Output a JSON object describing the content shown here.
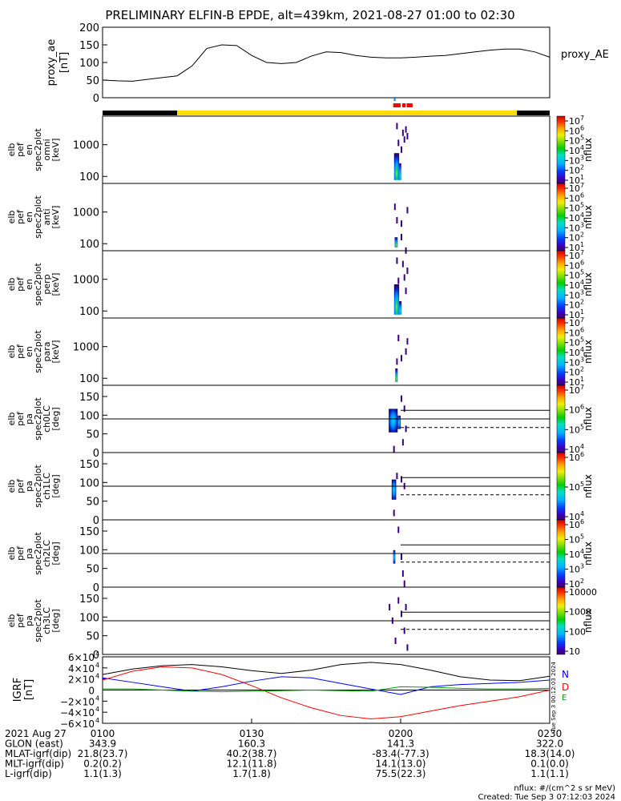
{
  "title": "PRELIMINARY ELFIN-B EPDE, alt=439km, 2021-08-27 01:00 to 02:30",
  "colors": {
    "black": "#000000",
    "yellow": "#ffdd00",
    "red": "#ff0000",
    "blue": "#1e7fff",
    "igrf_n": "#0000ff",
    "igrf_d": "#ff0000",
    "igrf_e": "#00a000",
    "igrf_total": "#000000"
  },
  "header_bar": {
    "segments": [
      {
        "start": 0,
        "end": 0.25,
        "color": "black"
      },
      {
        "start": 0.25,
        "end": 1.39,
        "color": "yellow"
      },
      {
        "start": 1.39,
        "end": 1.5,
        "color": "black"
      }
    ],
    "red_marks": [
      [
        0.975,
        1.0
      ],
      [
        1.005,
        1.017
      ],
      [
        1.02,
        1.04
      ]
    ],
    "blue_marks": [
      [
        0.977,
        0.983
      ]
    ]
  },
  "chart_data": [
    {
      "type": "line",
      "panel": "proxy_ae",
      "ylabel": [
        "proxy_ae",
        "[nT]"
      ],
      "ylim": [
        0,
        200
      ],
      "yticks": [
        "200",
        "150",
        "100",
        "50",
        "0"
      ],
      "yticks_values": [
        200,
        150,
        100,
        50,
        0
      ],
      "legend": "proxy_AE",
      "x_hours": [
        0,
        0.05,
        0.1,
        0.15,
        0.2,
        0.25,
        0.3,
        0.35,
        0.4,
        0.45,
        0.5,
        0.55,
        0.6,
        0.65,
        0.7,
        0.75,
        0.8,
        0.85,
        0.9,
        0.95,
        1.0,
        1.05,
        1.1,
        1.15,
        1.2,
        1.25,
        1.3,
        1.35,
        1.4,
        1.45,
        1.5
      ],
      "values": [
        50,
        48,
        47,
        52,
        57,
        62,
        90,
        140,
        150,
        148,
        120,
        100,
        97,
        100,
        118,
        130,
        128,
        120,
        115,
        113,
        113,
        115,
        118,
        120,
        125,
        130,
        135,
        138,
        138,
        130,
        115
      ]
    },
    {
      "type": "heatmap",
      "panel": "omni",
      "ylabel": [
        "elb",
        "pef",
        "en",
        "spec2plot",
        "omni",
        "[keV]"
      ],
      "scale": "log",
      "yticks": [
        "1000",
        "100"
      ],
      "yticks_values": [
        1000,
        100
      ],
      "colorbar": {
        "label": "nflux",
        "ticks": [
          "10",
          "10",
          "10",
          "10",
          "10",
          "10",
          "10"
        ],
        "exponents": [
          "7",
          "6",
          "5",
          "4",
          "3",
          "2",
          "1"
        ]
      }
    },
    {
      "type": "heatmap",
      "panel": "anti",
      "ylabel": [
        "elb",
        "pef",
        "en",
        "spec2plot",
        "anti",
        "[keV]"
      ],
      "scale": "log",
      "yticks": [
        "1000",
        "100"
      ],
      "yticks_values": [
        1000,
        100
      ],
      "colorbar": {
        "label": "nflux",
        "ticks": [
          "10",
          "10",
          "10",
          "10",
          "10",
          "10",
          "10"
        ],
        "exponents": [
          "7",
          "6",
          "5",
          "4",
          "3",
          "2",
          "1"
        ]
      }
    },
    {
      "type": "heatmap",
      "panel": "perp",
      "ylabel": [
        "elb",
        "pef",
        "en",
        "spec2plot",
        "perp",
        "[keV]"
      ],
      "scale": "log",
      "yticks": [
        "1000",
        "100"
      ],
      "yticks_values": [
        1000,
        100
      ],
      "colorbar": {
        "label": "nflux",
        "ticks": [
          "10",
          "10",
          "10",
          "10",
          "10",
          "10",
          "10"
        ],
        "exponents": [
          "7",
          "6",
          "5",
          "4",
          "3",
          "2",
          "1"
        ]
      }
    },
    {
      "type": "heatmap",
      "panel": "para",
      "ylabel": [
        "elb",
        "pef",
        "en",
        "spec2plot",
        "para",
        "[keV]"
      ],
      "scale": "log",
      "yticks": [
        "1000",
        "100"
      ],
      "yticks_values": [
        1000,
        100
      ],
      "colorbar": {
        "label": "nflux",
        "ticks": [
          "10",
          "10",
          "10",
          "10",
          "10",
          "10",
          "10"
        ],
        "exponents": [
          "7",
          "6",
          "5",
          "4",
          "3",
          "2",
          "1"
        ]
      }
    },
    {
      "type": "heatmap",
      "panel": "ch0LC",
      "ylabel": [
        "elb",
        "pef",
        "pa",
        "spec2plot",
        "ch0LC",
        "[deg]"
      ],
      "ylim": [
        0,
        180
      ],
      "yticks": [
        "150",
        "100",
        "50",
        "0"
      ],
      "yticks_values": [
        150,
        100,
        50,
        0
      ],
      "colorbar": {
        "label": "nflux",
        "ticks": [
          "10",
          "10",
          "10",
          "10"
        ],
        "exponents": [
          "7",
          "6",
          "5",
          "4"
        ]
      }
    },
    {
      "type": "heatmap",
      "panel": "ch1LC",
      "ylabel": [
        "elb",
        "pef",
        "pa",
        "spec2plot",
        "ch1LC",
        "[deg]"
      ],
      "ylim": [
        0,
        180
      ],
      "yticks": [
        "150",
        "100",
        "50",
        "0"
      ],
      "yticks_values": [
        150,
        100,
        50,
        0
      ],
      "colorbar": {
        "label": "nflux",
        "ticks": [
          "10",
          "10",
          "10"
        ],
        "exponents": [
          "6",
          "5",
          "4"
        ]
      }
    },
    {
      "type": "heatmap",
      "panel": "ch2LC",
      "ylabel": [
        "elb",
        "pef",
        "pa",
        "spec2plot",
        "ch2LC",
        "[deg]"
      ],
      "ylim": [
        0,
        180
      ],
      "yticks": [
        "150",
        "100",
        "50",
        "0"
      ],
      "yticks_values": [
        150,
        100,
        50,
        0
      ],
      "colorbar": {
        "label": "nflux",
        "ticks": [
          "10",
          "10",
          "10",
          "10",
          "10"
        ],
        "exponents": [
          "6",
          "5",
          "4",
          "3",
          "2"
        ]
      }
    },
    {
      "type": "heatmap",
      "panel": "ch3LC",
      "ylabel": [
        "elb",
        "pef",
        "pa",
        "spec2plot",
        "ch3LC",
        "[deg]"
      ],
      "ylim": [
        0,
        180
      ],
      "yticks": [
        "150",
        "100",
        "50",
        "0"
      ],
      "yticks_values": [
        150,
        100,
        50,
        0
      ],
      "colorbar": {
        "label": "nflux",
        "ticks": [
          "10000",
          "1000",
          "100",
          "10"
        ]
      }
    },
    {
      "type": "line",
      "panel": "igrf",
      "ylabel": [
        "IGRF",
        "[nT]"
      ],
      "ylim": [
        -60000,
        60000
      ],
      "yticks": [
        "6×10",
        "4×10",
        "2×10",
        "0",
        "−2×10",
        "−4×10",
        "−6×10"
      ],
      "yticks_exp": [
        "4",
        "4",
        "4",
        "",
        "4",
        "4",
        "4"
      ],
      "yticks_values": [
        60000,
        40000,
        20000,
        0,
        -20000,
        -40000,
        -60000
      ],
      "legend": [
        "N",
        "D",
        "E"
      ],
      "x_hours": [
        0,
        0.1,
        0.2,
        0.3,
        0.4,
        0.5,
        0.6,
        0.7,
        0.8,
        0.9,
        1.0,
        1.1,
        1.2,
        1.3,
        1.4,
        1.5
      ],
      "series": [
        {
          "name": "total",
          "values": [
            28000,
            38000,
            44000,
            46000,
            42000,
            35000,
            30000,
            36000,
            46000,
            50000,
            46000,
            36000,
            24000,
            18000,
            17000,
            25000
          ]
        },
        {
          "name": "N",
          "values": [
            22000,
            14000,
            6000,
            -2000,
            6000,
            16000,
            24000,
            22000,
            12000,
            2000,
            -8000,
            6000,
            10000,
            12000,
            14000,
            18000
          ]
        },
        {
          "name": "D",
          "values": [
            18000,
            34000,
            42000,
            40000,
            28000,
            8000,
            -14000,
            -32000,
            -46000,
            -52000,
            -48000,
            -38000,
            -28000,
            -20000,
            -12000,
            0
          ]
        },
        {
          "name": "E",
          "values": [
            2000,
            2000,
            0,
            -2000,
            -3000,
            -2000,
            -1000,
            0,
            -1000,
            -2000,
            6000,
            5000,
            3000,
            2000,
            2000,
            3000
          ]
        }
      ]
    }
  ],
  "heat_clusters": [
    {
      "panel": 0,
      "region": [
        [
          0.978,
          0.995,
          0.55,
          0.95
        ],
        [
          0.995,
          1.002,
          0.7,
          0.95
        ]
      ],
      "dots": [
        [
          0.985,
          0.1
        ],
        [
          1.005,
          0.2
        ],
        [
          1.01,
          0.3
        ],
        [
          1.015,
          0.15
        ],
        [
          0.99,
          0.35
        ],
        [
          1.02,
          0.25
        ],
        [
          1.0,
          0.45
        ]
      ]
    },
    {
      "panel": 1,
      "region": [
        [
          0.98,
          0.99,
          0.8,
          0.95
        ]
      ],
      "dots": [
        [
          0.978,
          0.3
        ],
        [
          0.985,
          0.5
        ],
        [
          1.0,
          0.55
        ],
        [
          1.0,
          0.75
        ],
        [
          1.02,
          0.35
        ],
        [
          1.015,
          0.95
        ]
      ]
    },
    {
      "panel": 2,
      "region": [
        [
          0.978,
          0.995,
          0.5,
          0.95
        ],
        [
          0.995,
          1.003,
          0.75,
          0.95
        ]
      ],
      "dots": [
        [
          0.985,
          0.1
        ],
        [
          1.005,
          0.15
        ],
        [
          1.01,
          0.35
        ],
        [
          1.02,
          0.25
        ],
        [
          0.99,
          0.4
        ],
        [
          1.015,
          0.55
        ]
      ]
    },
    {
      "panel": 3,
      "region": [
        [
          0.982,
          0.99,
          0.75,
          0.95
        ]
      ],
      "dots": [
        [
          0.99,
          0.25
        ],
        [
          1.0,
          0.55
        ],
        [
          1.015,
          0.45
        ],
        [
          0.985,
          0.6
        ],
        [
          1.02,
          0.3
        ]
      ]
    },
    {
      "panel": 4,
      "region": [
        [
          0.96,
          0.99,
          0.35,
          0.7
        ],
        [
          0.99,
          1.0,
          0.45,
          0.65
        ]
      ],
      "dots": [
        [
          1.0,
          0.15
        ],
        [
          1.01,
          0.3
        ],
        [
          1.015,
          0.6
        ],
        [
          1.005,
          0.8
        ],
        [
          0.975,
          0.9
        ]
      ]
    },
    {
      "panel": 5,
      "region": [
        [
          0.97,
          0.985,
          0.4,
          0.7
        ]
      ],
      "dots": [
        [
          0.985,
          0.3
        ],
        [
          1.0,
          0.35
        ],
        [
          1.01,
          0.45
        ],
        [
          0.975,
          0.85
        ]
      ]
    },
    {
      "panel": 6,
      "region": [
        [
          0.975,
          0.982,
          0.45,
          0.65
        ]
      ],
      "dots": [
        [
          0.99,
          0.1
        ],
        [
          1.0,
          0.5
        ],
        [
          1.005,
          0.75
        ],
        [
          1.01,
          0.9
        ]
      ]
    },
    {
      "panel": 7,
      "region": [],
      "dots": [
        [
          0.96,
          0.25
        ],
        [
          0.97,
          0.45
        ],
        [
          0.99,
          0.15
        ],
        [
          1.0,
          0.35
        ],
        [
          1.01,
          0.6
        ],
        [
          1.02,
          0.85
        ],
        [
          0.98,
          0.75
        ],
        [
          1.015,
          0.25
        ]
      ]
    }
  ],
  "lc_lines": [
    {
      "panel": 4,
      "solid_deg": 113,
      "dashed_deg": 67,
      "ref_deg": 90
    },
    {
      "panel": 5,
      "solid_deg": 113,
      "dashed_deg": 67,
      "ref_deg": 90
    },
    {
      "panel": 6,
      "solid_deg": 113,
      "dashed_deg": 67,
      "ref_deg": 90
    },
    {
      "panel": 7,
      "solid_deg": 113,
      "dashed_deg": 67,
      "ref_deg": 90
    }
  ],
  "footer": {
    "rows": [
      {
        "label": "2021 Aug 27",
        "values": [
          "0100",
          "0130",
          "0200",
          "0230"
        ]
      },
      {
        "label": "GLON (east)",
        "values": [
          "343.9",
          "160.3",
          "141.3",
          "322.0"
        ]
      },
      {
        "label": "MLAT-igrf(dip)",
        "values": [
          "21.8(23.7)",
          "40.2(38.7)",
          "-83.4(-77.3)",
          "18.3(14.0)"
        ]
      },
      {
        "label": "MLT-igrf(dip)",
        "values": [
          "0.2(0.2)",
          "12.1(11.8)",
          "14.1(13.0)",
          "0.1(0.0)"
        ]
      },
      {
        "label": "L-igrf(dip)",
        "values": [
          "1.1(1.3)",
          "1.7(1.8)",
          "75.5(22.3)",
          "1.1(1.1)"
        ]
      }
    ],
    "units_note": "nflux: #/(cm^2 s sr MeV)",
    "created": "Created: Tue Sep  3 07:12:03 2024",
    "side_stamp": "Tue Sep  3 00:12:03 2024"
  }
}
